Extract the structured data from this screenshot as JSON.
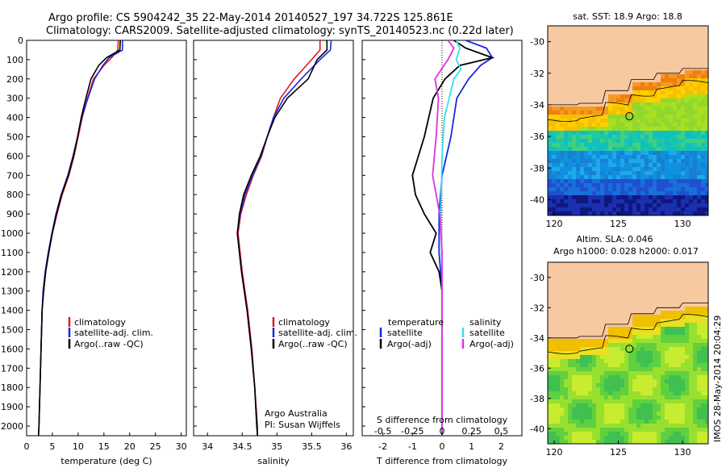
{
  "header": {
    "line1": "Argo profile: CS 5904242_35 22-May-2014 20140527_197 34.722S 125.861E",
    "line2": "Climatology: CARS2009. Satellite-adjusted climatology: synTS_20140523.nc (0.22d later)"
  },
  "side_stamp": "IMOS 28-May-2014 20:04:29",
  "colors": {
    "climatology": "#e01818",
    "satellite": "#1a28e0",
    "argo": "#000000",
    "sal_satellite": "#33e0f0",
    "sal_argo": "#e030e0",
    "land": "#f7c9a0"
  },
  "chart_data": [
    {
      "type": "line",
      "xlabel": "temperature (deg C)",
      "xlim": [
        0,
        31
      ],
      "xticks": [
        "0",
        "5",
        "10",
        "15",
        "20",
        "25",
        "30"
      ],
      "ylim": [
        0,
        2050
      ],
      "yticks": [
        "0",
        "100",
        "200",
        "300",
        "400",
        "500",
        "600",
        "700",
        "800",
        "900",
        "1000",
        "1100",
        "1200",
        "1300",
        "1400",
        "1500",
        "1600",
        "1700",
        "1800",
        "1900",
        "2000"
      ],
      "legend": [
        "climatology",
        "satellite-adj. clim.",
        "Argo(..raw -QC)"
      ],
      "series": [
        {
          "name": "climatology",
          "depth": [
            0,
            50,
            90,
            130,
            200,
            300,
            400,
            500,
            600,
            700,
            800,
            900,
            1000,
            1100,
            1200,
            1300,
            1400,
            1600,
            1800,
            2000,
            2050
          ],
          "values": [
            17.8,
            17.7,
            16.5,
            15.0,
            13.0,
            11.8,
            10.8,
            10.0,
            9.2,
            8.2,
            6.9,
            5.9,
            5.0,
            4.3,
            3.7,
            3.3,
            3.0,
            2.8,
            2.6,
            2.4,
            2.3
          ]
        },
        {
          "name": "satellite-adj. clim.",
          "depth": [
            0,
            50,
            90,
            130,
            200,
            300,
            400,
            500,
            600,
            700,
            800,
            900,
            1000,
            1100,
            1200,
            1300,
            1400,
            1600,
            1800,
            2000,
            2050
          ],
          "values": [
            18.6,
            18.6,
            16.0,
            14.8,
            13.2,
            11.9,
            10.7,
            9.9,
            9.0,
            8.0,
            6.7,
            5.7,
            4.9,
            4.2,
            3.6,
            3.2,
            3.0,
            2.8,
            2.6,
            2.4,
            2.3
          ]
        },
        {
          "name": "Argo(..raw -QC)",
          "depth": [
            0,
            50,
            90,
            130,
            200,
            300,
            400,
            500,
            600,
            700,
            800,
            900,
            1000,
            1100,
            1200,
            1300,
            1400,
            1600,
            1800,
            2000,
            2050
          ],
          "values": [
            18.2,
            18.1,
            15.5,
            14.0,
            12.5,
            11.5,
            10.6,
            9.9,
            9.1,
            8.1,
            6.8,
            5.8,
            5.0,
            4.3,
            3.7,
            3.3,
            3.0,
            2.8,
            2.6,
            2.4,
            2.3
          ]
        }
      ]
    },
    {
      "type": "line",
      "xlabel": "salinity",
      "xlim": [
        33.8,
        36.1
      ],
      "xticks": [
        "34",
        "34.5",
        "35",
        "35.5",
        "36"
      ],
      "ylim": [
        0,
        2050
      ],
      "legend": [
        "climatology",
        "satellite-adj. clim.",
        "Argo(..raw -QC)"
      ],
      "annotation": [
        "Argo Australia",
        "PI: Susan Wijffels"
      ],
      "series": [
        {
          "name": "climatology",
          "depth": [
            0,
            50,
            100,
            200,
            300,
            400,
            500,
            600,
            700,
            800,
            900,
            1000,
            1200,
            1400,
            1600,
            1800,
            2000,
            2050
          ],
          "values": [
            35.62,
            35.62,
            35.5,
            35.25,
            35.05,
            34.95,
            34.86,
            34.78,
            34.66,
            34.56,
            34.48,
            34.44,
            34.5,
            34.58,
            34.64,
            34.68,
            34.72,
            34.72
          ]
        },
        {
          "name": "satellite-adj. clim.",
          "depth": [
            0,
            50,
            100,
            200,
            300,
            400,
            500,
            600,
            700,
            800,
            900,
            1000,
            1200,
            1400,
            1600,
            1800,
            2000,
            2050
          ],
          "values": [
            35.78,
            35.77,
            35.62,
            35.35,
            35.1,
            34.95,
            34.86,
            34.77,
            34.65,
            34.54,
            34.47,
            34.43,
            34.49,
            34.57,
            34.63,
            34.68,
            34.71,
            34.72
          ]
        },
        {
          "name": "Argo(..raw -QC)",
          "depth": [
            0,
            50,
            100,
            200,
            300,
            400,
            500,
            600,
            700,
            800,
            900,
            1000,
            1200,
            1400,
            1600,
            1800,
            2000,
            2050
          ],
          "values": [
            35.72,
            35.72,
            35.58,
            35.45,
            35.15,
            34.97,
            34.86,
            34.76,
            34.63,
            34.52,
            34.46,
            34.43,
            34.49,
            34.57,
            34.63,
            34.68,
            34.71,
            34.72
          ]
        }
      ]
    },
    {
      "type": "line",
      "xlabel": "T difference from climatology",
      "xlabel_top": "S difference from climatology",
      "xlim": [
        -2.7,
        2.7
      ],
      "xticks": [
        "-2",
        "-1",
        "0",
        "1",
        "2"
      ],
      "xticks_top": [
        "-0.5",
        "-0.25",
        "0",
        "0.25",
        "0.5"
      ],
      "ylim": [
        0,
        2050
      ],
      "legend_left_title": "temperature",
      "legend_right_title": "salinity",
      "legend": [
        "satellite",
        "Argo(-adj)",
        "satellite",
        "Argo(-adj)"
      ],
      "series": [
        {
          "name": "satellite",
          "depth": [
            0,
            40,
            90,
            130,
            200,
            300,
            500,
            700,
            900,
            1100,
            1300,
            1500,
            2050
          ],
          "values": [
            0.8,
            1.5,
            1.7,
            1.3,
            0.9,
            0.5,
            0.3,
            0.0,
            -0.1,
            -0.1,
            0.0,
            0.0,
            0.0
          ]
        },
        {
          "name": "Argo(-adj)",
          "depth": [
            0,
            40,
            90,
            130,
            200,
            300,
            500,
            700,
            800,
            900,
            1000,
            1100,
            1200,
            1300,
            1500,
            2050
          ],
          "values": [
            0.4,
            0.8,
            1.7,
            0.6,
            0.1,
            -0.3,
            -0.6,
            -1.0,
            -0.9,
            -0.6,
            -0.2,
            -0.4,
            -0.1,
            0.0,
            0.0,
            0.0
          ]
        },
        {
          "name": "salinity satellite",
          "depth": [
            0,
            40,
            100,
            150,
            200,
            400,
            600,
            900,
            1200,
            1500,
            2050
          ],
          "values": [
            0.12,
            0.15,
            0.12,
            0.16,
            0.1,
            0.02,
            0.0,
            -0.01,
            0.0,
            0.0,
            0.0
          ]
        },
        {
          "name": "salinity Argo(-adj)",
          "depth": [
            0,
            40,
            100,
            200,
            300,
            500,
            700,
            900,
            1100,
            1300,
            1500,
            2050
          ],
          "values": [
            0.05,
            0.1,
            0.05,
            -0.06,
            -0.03,
            -0.05,
            -0.08,
            -0.02,
            0.0,
            0.0,
            0.0,
            0.0
          ]
        }
      ]
    },
    {
      "type": "heatmap",
      "title": "sat. SST: 18.9 Argo: 18.8",
      "xlim": [
        119.5,
        132
      ],
      "ylim": [
        -41,
        -29
      ],
      "xticks": [
        "120",
        "125",
        "130"
      ],
      "yticks": [
        "-30",
        "-32",
        "-34",
        "-36",
        "-38",
        "-40"
      ],
      "marker": {
        "lon": 125.861,
        "lat": -34.722
      }
    },
    {
      "type": "heatmap",
      "title": "Altim. SLA: 0.046",
      "subtitle": "Argo h1000: 0.028 h2000: 0.017",
      "xlim": [
        119.5,
        132
      ],
      "ylim": [
        -41,
        -29
      ],
      "xticks": [
        "120",
        "125",
        "130"
      ],
      "yticks": [
        "-30",
        "-32",
        "-34",
        "-36",
        "-38",
        "-40"
      ],
      "marker": {
        "lon": 125.861,
        "lat": -34.722
      }
    }
  ]
}
